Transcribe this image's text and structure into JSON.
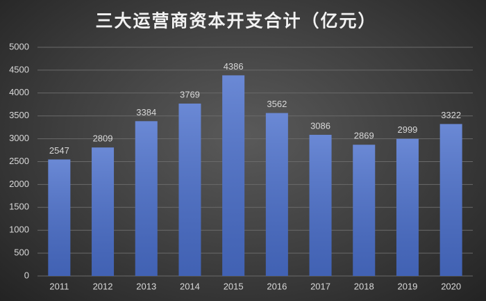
{
  "chart_data": {
    "type": "bar",
    "title": "三大运营商资本开支合计（亿元）",
    "categories": [
      "2011",
      "2012",
      "2013",
      "2014",
      "2015",
      "2016",
      "2017",
      "2018",
      "2019",
      "2020"
    ],
    "values": [
      2547,
      2809,
      3384,
      3769,
      4386,
      3562,
      3086,
      2869,
      2999,
      3322
    ],
    "color": "#4a6fcc",
    "ylim": [
      0,
      5000
    ],
    "yticks": [
      0,
      500,
      1000,
      1500,
      2000,
      2500,
      3000,
      3500,
      4000,
      4500,
      5000
    ],
    "grid": true
  }
}
